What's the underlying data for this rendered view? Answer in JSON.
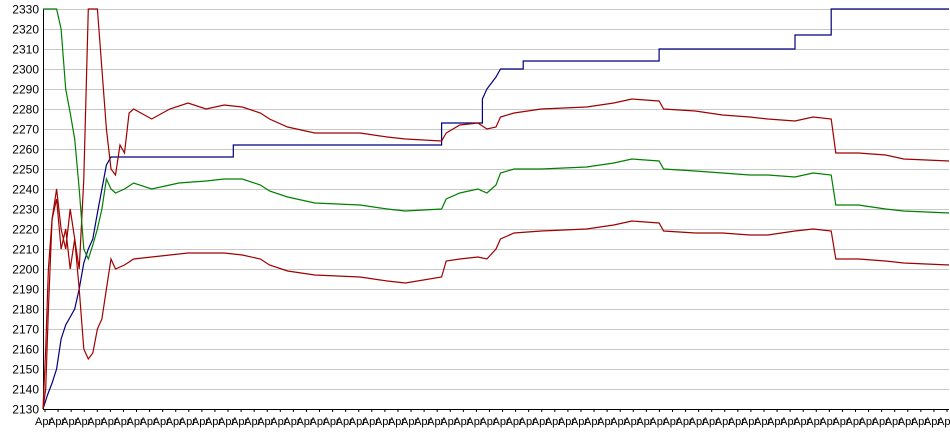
{
  "chart_data": {
    "type": "line",
    "title": "",
    "xlabel": "",
    "ylabel": "",
    "ylim": [
      2130,
      2330
    ],
    "yticks": [
      2130,
      2140,
      2150,
      2160,
      2170,
      2180,
      2190,
      2200,
      2210,
      2220,
      2230,
      2240,
      2250,
      2260,
      2270,
      2280,
      2290,
      2300,
      2310,
      2320,
      2330
    ],
    "grid": true,
    "legend": "none",
    "x_tick_labels_note": "dense overlapping date-like labels",
    "x_tick_label": "Apr",
    "x_tick_count": 70,
    "xlim": [
      0,
      100
    ],
    "series": [
      {
        "color": "#000080",
        "points": [
          [
            0,
            2130
          ],
          [
            0.5,
            2137
          ],
          [
            1,
            2143
          ],
          [
            1.5,
            2150
          ],
          [
            2,
            2165
          ],
          [
            2.5,
            2172
          ],
          [
            3.5,
            2180
          ],
          [
            4,
            2190
          ],
          [
            4.5,
            2203
          ],
          [
            5,
            2210
          ],
          [
            5.5,
            2215
          ],
          [
            6,
            2228
          ],
          [
            6.5,
            2240
          ],
          [
            7,
            2252
          ],
          [
            7.5,
            2256
          ],
          [
            21,
            2256
          ],
          [
            21,
            2262
          ],
          [
            35,
            2262
          ],
          [
            44,
            2262
          ],
          [
            44,
            2273
          ],
          [
            48.5,
            2273
          ],
          [
            48.5,
            2285
          ],
          [
            49,
            2290
          ],
          [
            50,
            2296
          ],
          [
            50.5,
            2300
          ],
          [
            53,
            2300
          ],
          [
            53,
            2304
          ],
          [
            68,
            2304
          ],
          [
            68,
            2310
          ],
          [
            83,
            2310
          ],
          [
            83,
            2317
          ],
          [
            87,
            2317
          ],
          [
            87,
            2330
          ],
          [
            100,
            2330
          ]
        ]
      },
      {
        "color": "#a00000",
        "points": [
          [
            0,
            2130
          ],
          [
            0.3,
            2160
          ],
          [
            0.6,
            2200
          ],
          [
            1,
            2225
          ],
          [
            1.5,
            2240
          ],
          [
            2,
            2220
          ],
          [
            2.5,
            2210
          ],
          [
            3,
            2230
          ],
          [
            3.5,
            2215
          ],
          [
            4,
            2200
          ],
          [
            4.5,
            2245
          ],
          [
            5,
            2330
          ],
          [
            6,
            2330
          ],
          [
            6.5,
            2300
          ],
          [
            7,
            2270
          ],
          [
            7.5,
            2250
          ],
          [
            8,
            2247
          ],
          [
            8.5,
            2262
          ],
          [
            9,
            2258
          ],
          [
            9.5,
            2278
          ],
          [
            10,
            2280
          ],
          [
            12,
            2275
          ],
          [
            14,
            2280
          ],
          [
            16,
            2283
          ],
          [
            18,
            2280
          ],
          [
            20,
            2282
          ],
          [
            22,
            2281
          ],
          [
            24,
            2278
          ],
          [
            25,
            2275
          ],
          [
            27,
            2271
          ],
          [
            30,
            2268
          ],
          [
            35,
            2268
          ],
          [
            38,
            2266
          ],
          [
            40,
            2265
          ],
          [
            44,
            2264
          ],
          [
            44.5,
            2268
          ],
          [
            46,
            2272
          ],
          [
            48,
            2273
          ],
          [
            49,
            2270
          ],
          [
            50,
            2271
          ],
          [
            50.5,
            2276
          ],
          [
            52,
            2278
          ],
          [
            55,
            2280
          ],
          [
            60,
            2281
          ],
          [
            63,
            2283
          ],
          [
            65,
            2285
          ],
          [
            68,
            2284
          ],
          [
            68.5,
            2280
          ],
          [
            72,
            2279
          ],
          [
            75,
            2277
          ],
          [
            78,
            2276
          ],
          [
            80,
            2275
          ],
          [
            83,
            2274
          ],
          [
            85,
            2276
          ],
          [
            87,
            2275
          ],
          [
            87.5,
            2258
          ],
          [
            90,
            2258
          ],
          [
            93,
            2257
          ],
          [
            95,
            2255
          ],
          [
            100,
            2254
          ]
        ]
      },
      {
        "color": "#008000",
        "points": [
          [
            0,
            2330
          ],
          [
            1,
            2330
          ],
          [
            1.5,
            2330
          ],
          [
            2,
            2320
          ],
          [
            2.5,
            2290
          ],
          [
            3,
            2278
          ],
          [
            3.5,
            2265
          ],
          [
            4,
            2240
          ],
          [
            4.5,
            2210
          ],
          [
            5,
            2205
          ],
          [
            5.5,
            2212
          ],
          [
            6,
            2220
          ],
          [
            6.5,
            2230
          ],
          [
            7,
            2245
          ],
          [
            7.5,
            2240
          ],
          [
            8,
            2238
          ],
          [
            9,
            2240
          ],
          [
            10,
            2243
          ],
          [
            12,
            2240
          ],
          [
            15,
            2243
          ],
          [
            18,
            2244
          ],
          [
            20,
            2245
          ],
          [
            22,
            2245
          ],
          [
            24,
            2242
          ],
          [
            25,
            2239
          ],
          [
            27,
            2236
          ],
          [
            30,
            2233
          ],
          [
            35,
            2232
          ],
          [
            38,
            2230
          ],
          [
            40,
            2229
          ],
          [
            44,
            2230
          ],
          [
            44.5,
            2235
          ],
          [
            46,
            2238
          ],
          [
            48,
            2240
          ],
          [
            49,
            2238
          ],
          [
            50,
            2242
          ],
          [
            50.5,
            2248
          ],
          [
            52,
            2250
          ],
          [
            55,
            2250
          ],
          [
            60,
            2251
          ],
          [
            63,
            2253
          ],
          [
            65,
            2255
          ],
          [
            68,
            2254
          ],
          [
            68.5,
            2250
          ],
          [
            72,
            2249
          ],
          [
            75,
            2248
          ],
          [
            78,
            2247
          ],
          [
            80,
            2247
          ],
          [
            83,
            2246
          ],
          [
            85,
            2248
          ],
          [
            87,
            2247
          ],
          [
            87.5,
            2232
          ],
          [
            90,
            2232
          ],
          [
            93,
            2230
          ],
          [
            95,
            2229
          ],
          [
            100,
            2228
          ]
        ]
      },
      {
        "color": "#a00000",
        "points": [
          [
            0,
            2130
          ],
          [
            0.3,
            2140
          ],
          [
            0.6,
            2180
          ],
          [
            1,
            2225
          ],
          [
            1.5,
            2235
          ],
          [
            2,
            2210
          ],
          [
            2.5,
            2220
          ],
          [
            3,
            2200
          ],
          [
            3.5,
            2215
          ],
          [
            4,
            2190
          ],
          [
            4.5,
            2160
          ],
          [
            5,
            2155
          ],
          [
            5.5,
            2158
          ],
          [
            6,
            2170
          ],
          [
            6.5,
            2175
          ],
          [
            7,
            2190
          ],
          [
            7.5,
            2205
          ],
          [
            8,
            2200
          ],
          [
            9,
            2202
          ],
          [
            10,
            2205
          ],
          [
            12,
            2206
          ],
          [
            14,
            2207
          ],
          [
            16,
            2208
          ],
          [
            18,
            2208
          ],
          [
            20,
            2208
          ],
          [
            22,
            2207
          ],
          [
            24,
            2205
          ],
          [
            25,
            2202
          ],
          [
            27,
            2199
          ],
          [
            30,
            2197
          ],
          [
            35,
            2196
          ],
          [
            38,
            2194
          ],
          [
            40,
            2193
          ],
          [
            44,
            2196
          ],
          [
            44.5,
            2204
          ],
          [
            46,
            2205
          ],
          [
            48,
            2206
          ],
          [
            49,
            2205
          ],
          [
            50,
            2210
          ],
          [
            50.5,
            2215
          ],
          [
            52,
            2218
          ],
          [
            55,
            2219
          ],
          [
            60,
            2220
          ],
          [
            63,
            2222
          ],
          [
            65,
            2224
          ],
          [
            68,
            2223
          ],
          [
            68.5,
            2219
          ],
          [
            72,
            2218
          ],
          [
            75,
            2218
          ],
          [
            78,
            2217
          ],
          [
            80,
            2217
          ],
          [
            83,
            2219
          ],
          [
            85,
            2220
          ],
          [
            87,
            2219
          ],
          [
            87.5,
            2205
          ],
          [
            90,
            2205
          ],
          [
            93,
            2204
          ],
          [
            95,
            2203
          ],
          [
            100,
            2202
          ]
        ]
      }
    ]
  }
}
